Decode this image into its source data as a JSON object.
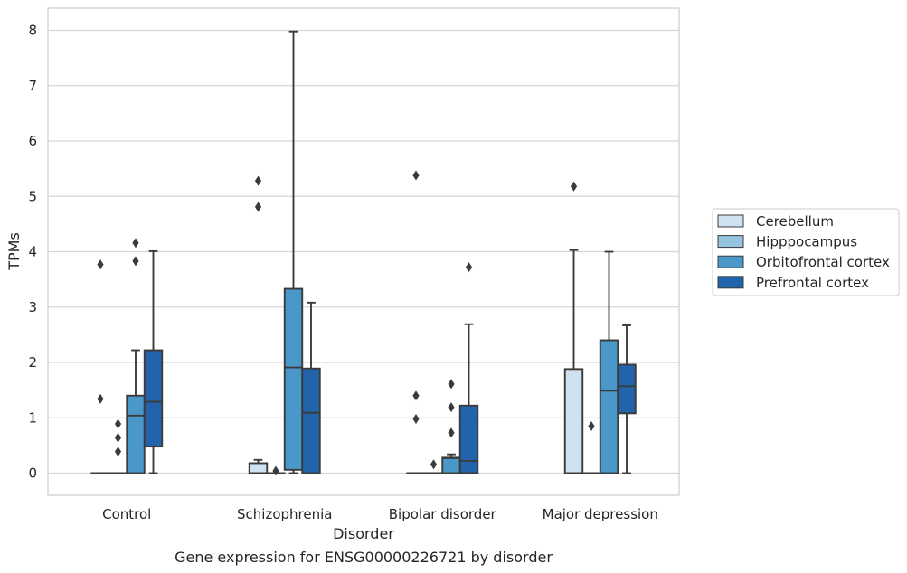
{
  "caption": "Gene expression for ENSG00000226721 by disorder",
  "chart_data": {
    "type": "box",
    "title": "",
    "xlabel": "Disorder",
    "ylabel": "TPMs",
    "ylim": [
      -0.4,
      8.4
    ],
    "yticks": [
      0,
      1,
      2,
      3,
      4,
      5,
      6,
      7,
      8
    ],
    "ytick_labels": [
      "0",
      "1",
      "2",
      "3",
      "4",
      "5",
      "6",
      "7",
      "8"
    ],
    "grid": "horizontal",
    "legend_position": "outside right",
    "categories": [
      "Control",
      "Schizophrenia",
      "Bipolar disorder",
      "Major depression"
    ],
    "series": [
      {
        "name": "Cerebellum",
        "color": "#d0e1f2",
        "boxes": [
          {
            "q1": 0,
            "median": 0,
            "q3": 0,
            "whislo": 0,
            "whishi": 0,
            "fliers": [
              3.77,
              1.34
            ]
          },
          {
            "q1": 0,
            "median": 0,
            "q3": 0.18,
            "whislo": 0,
            "whishi": 0.24,
            "fliers": [
              5.28,
              4.81
            ]
          },
          {
            "q1": 0,
            "median": 0,
            "q3": 0,
            "whislo": 0,
            "whishi": 0,
            "fliers": [
              5.38,
              1.4,
              0.98
            ]
          },
          {
            "q1": 0,
            "median": 0,
            "q3": 1.88,
            "whislo": 0,
            "whishi": 4.03,
            "fliers": [
              5.18
            ]
          }
        ]
      },
      {
        "name": "Hipppocampus",
        "color": "#94c4df",
        "boxes": [
          {
            "q1": 0,
            "median": 0,
            "q3": 0,
            "whislo": 0,
            "whishi": 0,
            "fliers": [
              0.89,
              0.64,
              0.39
            ]
          },
          {
            "q1": 0,
            "median": 0,
            "q3": 0,
            "whislo": 0,
            "whishi": 0,
            "fliers": [
              0.04
            ]
          },
          {
            "q1": 0,
            "median": 0,
            "q3": 0,
            "whislo": 0,
            "whishi": 0,
            "fliers": [
              0.16
            ]
          },
          {
            "q1": 0,
            "median": 0,
            "q3": 0,
            "whislo": 0,
            "whishi": 0,
            "fliers": [
              0.85
            ]
          }
        ]
      },
      {
        "name": "Orbitofrontal cortex",
        "color": "#4a98c9",
        "boxes": [
          {
            "q1": 0,
            "median": 1.04,
            "q3": 1.4,
            "whislo": 0,
            "whishi": 2.22,
            "fliers": [
              4.16,
              3.83
            ]
          },
          {
            "q1": 0.06,
            "median": 1.91,
            "q3": 3.33,
            "whislo": 0,
            "whishi": 7.98,
            "fliers": []
          },
          {
            "q1": 0,
            "median": 0.27,
            "q3": 0.28,
            "whislo": 0,
            "whishi": 0.34,
            "fliers": [
              1.61,
              1.19,
              0.73
            ]
          },
          {
            "q1": 0,
            "median": 1.49,
            "q3": 2.4,
            "whislo": 0,
            "whishi": 4.0,
            "fliers": []
          }
        ]
      },
      {
        "name": "Prefrontal cortex",
        "color": "#2164ab",
        "boxes": [
          {
            "q1": 0.48,
            "median": 1.29,
            "q3": 2.22,
            "whislo": 0,
            "whishi": 4.01,
            "fliers": []
          },
          {
            "q1": 0,
            "median": 1.09,
            "q3": 1.89,
            "whislo": 0,
            "whishi": 3.08,
            "fliers": []
          },
          {
            "q1": 0,
            "median": 0.22,
            "q3": 1.22,
            "whislo": 0,
            "whishi": 2.69,
            "fliers": [
              3.72
            ]
          },
          {
            "q1": 1.08,
            "median": 1.57,
            "q3": 1.96,
            "whislo": 0,
            "whishi": 2.67,
            "fliers": []
          }
        ]
      }
    ]
  }
}
